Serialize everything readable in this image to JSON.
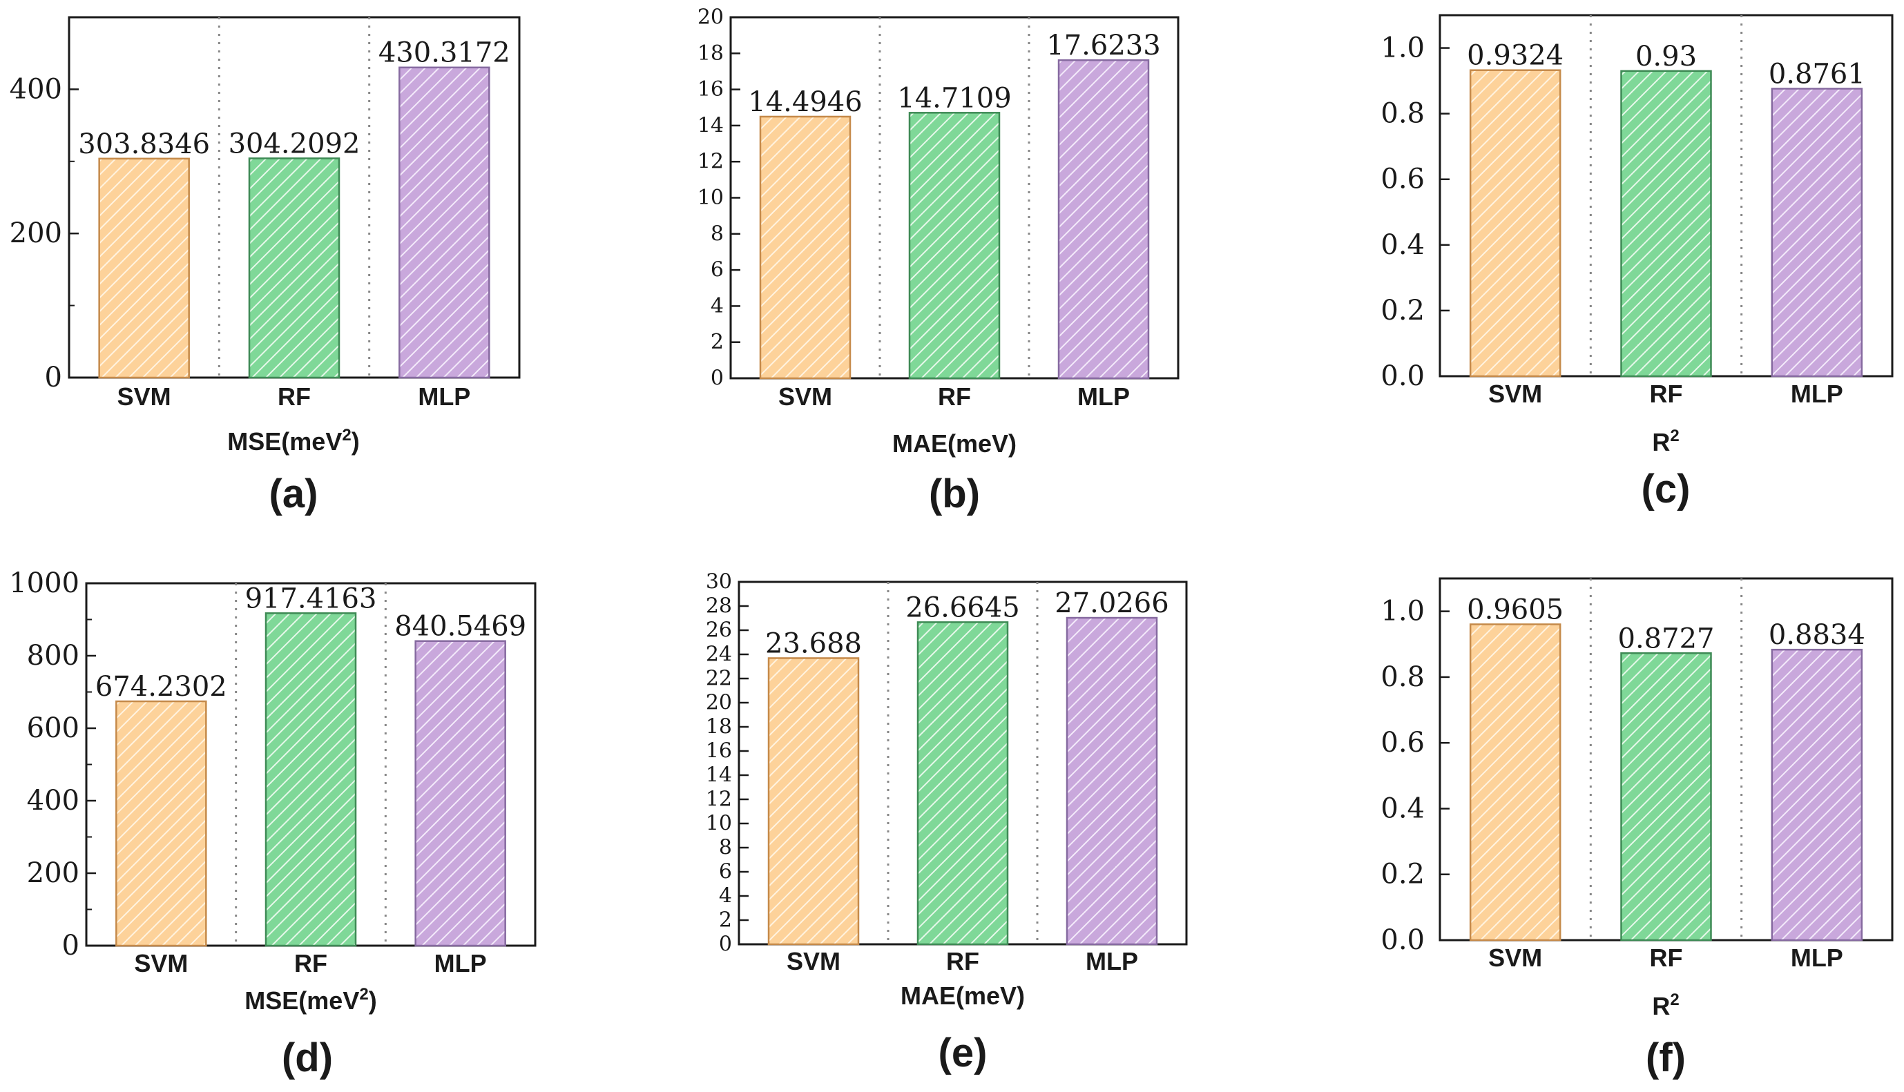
{
  "colors": {
    "SVM": {
      "fill": "#fdd29a",
      "stroke": "#c58a4a",
      "hatch": "#fff3e0"
    },
    "RF": {
      "fill": "#7fd898",
      "stroke": "#3e8a55",
      "hatch": "#e6f8ea"
    },
    "MLP": {
      "fill": "#c9a8dc",
      "stroke": "#866aa0",
      "hatch": "#f3eafa"
    }
  },
  "chart_data": [
    {
      "id": "a",
      "type": "bar",
      "panel_label": "(a)",
      "categories": [
        "SVM",
        "RF",
        "MLP"
      ],
      "values": [
        303.8346,
        304.2092,
        430.3172
      ],
      "value_labels": [
        "303.8346",
        "304.2092",
        "430.3172"
      ],
      "xlabel": "MSE(meV",
      "xlabel_sup": "2",
      "xlabel_suffix": ")",
      "ylim": [
        0,
        500
      ],
      "base": 0,
      "ymax": 500,
      "yticks": [
        0,
        200,
        400
      ],
      "tick_labels": [
        "0",
        "200",
        "400"
      ],
      "minor_step": 100
    },
    {
      "id": "b",
      "type": "bar",
      "panel_label": "(b)",
      "categories": [
        "SVM",
        "RF",
        "MLP"
      ],
      "values": [
        14.4946,
        14.7109,
        17.6233
      ],
      "value_labels": [
        "14.4946",
        "14.7109",
        "17.6233"
      ],
      "xlabel": "MAE(meV)",
      "xlabel_sup": "",
      "xlabel_suffix": "",
      "ylim": [
        0,
        20
      ],
      "yticks": [
        0,
        2,
        4,
        6,
        8,
        10,
        12,
        14,
        16,
        18,
        20
      ],
      "tick_labels": [
        "0",
        "2",
        "4",
        "6",
        "8",
        "10",
        "12",
        "14",
        "16",
        "18",
        "20"
      ]
    },
    {
      "id": "c",
      "type": "bar",
      "panel_label": "(c)",
      "categories": [
        "SVM",
        "RF",
        "MLP"
      ],
      "values": [
        0.9324,
        0.93,
        0.8761
      ],
      "value_labels": [
        "0.9324",
        "0.93",
        "0.8761"
      ],
      "xlabel": "R",
      "xlabel_sup": "2",
      "xlabel_suffix": "",
      "ylim": [
        0,
        1.1
      ],
      "yticks": [
        0,
        0.2,
        0.4,
        0.6,
        0.8,
        1.0
      ],
      "tick_labels": [
        "0.0",
        "0.2",
        "0.4",
        "0.6",
        "0.8",
        "1.0"
      ]
    },
    {
      "id": "d",
      "type": "bar",
      "panel_label": "(d)",
      "categories": [
        "SVM",
        "RF",
        "MLP"
      ],
      "values": [
        674.2302,
        917.4163,
        840.5469
      ],
      "value_labels": [
        "674.2302",
        "917.4163",
        "840.5469"
      ],
      "xlabel": "MSE(meV",
      "xlabel_sup": "2",
      "xlabel_suffix": ")",
      "ylim": [
        0,
        1000
      ],
      "yticks": [
        0,
        200,
        400,
        600,
        800,
        1000
      ],
      "tick_labels": [
        "0",
        "200",
        "400",
        "600",
        "800",
        "1000"
      ],
      "minor_step": 100
    },
    {
      "id": "e",
      "type": "bar",
      "panel_label": "(e)",
      "categories": [
        "SVM",
        "RF",
        "MLP"
      ],
      "values": [
        23.688,
        26.6645,
        27.0266
      ],
      "value_labels": [
        "23.688",
        "26.6645",
        "27.0266"
      ],
      "xlabel": "MAE(meV)",
      "xlabel_sup": "",
      "xlabel_suffix": "",
      "ylim": [
        0,
        30
      ],
      "yticks": [
        0,
        2,
        4,
        6,
        8,
        10,
        12,
        14,
        16,
        18,
        20,
        22,
        24,
        26,
        28,
        30
      ],
      "tick_labels": [
        "0",
        "2",
        "4",
        "6",
        "8",
        "10",
        "12",
        "14",
        "16",
        "18",
        "20",
        "22",
        "24",
        "26",
        "28",
        "30"
      ]
    },
    {
      "id": "f",
      "type": "bar",
      "panel_label": "(f)",
      "categories": [
        "SVM",
        "RF",
        "MLP"
      ],
      "values": [
        0.9605,
        0.8727,
        0.8834
      ],
      "value_labels": [
        "0.9605",
        "0.8727",
        "0.8834"
      ],
      "xlabel": "R",
      "xlabel_sup": "2",
      "xlabel_suffix": "",
      "ylim": [
        0,
        1.1
      ],
      "yticks": [
        0,
        0.2,
        0.4,
        0.6,
        0.8,
        1.0
      ],
      "tick_labels": [
        "0.0",
        "0.2",
        "0.4",
        "0.6",
        "0.8",
        "1.0"
      ]
    }
  ]
}
